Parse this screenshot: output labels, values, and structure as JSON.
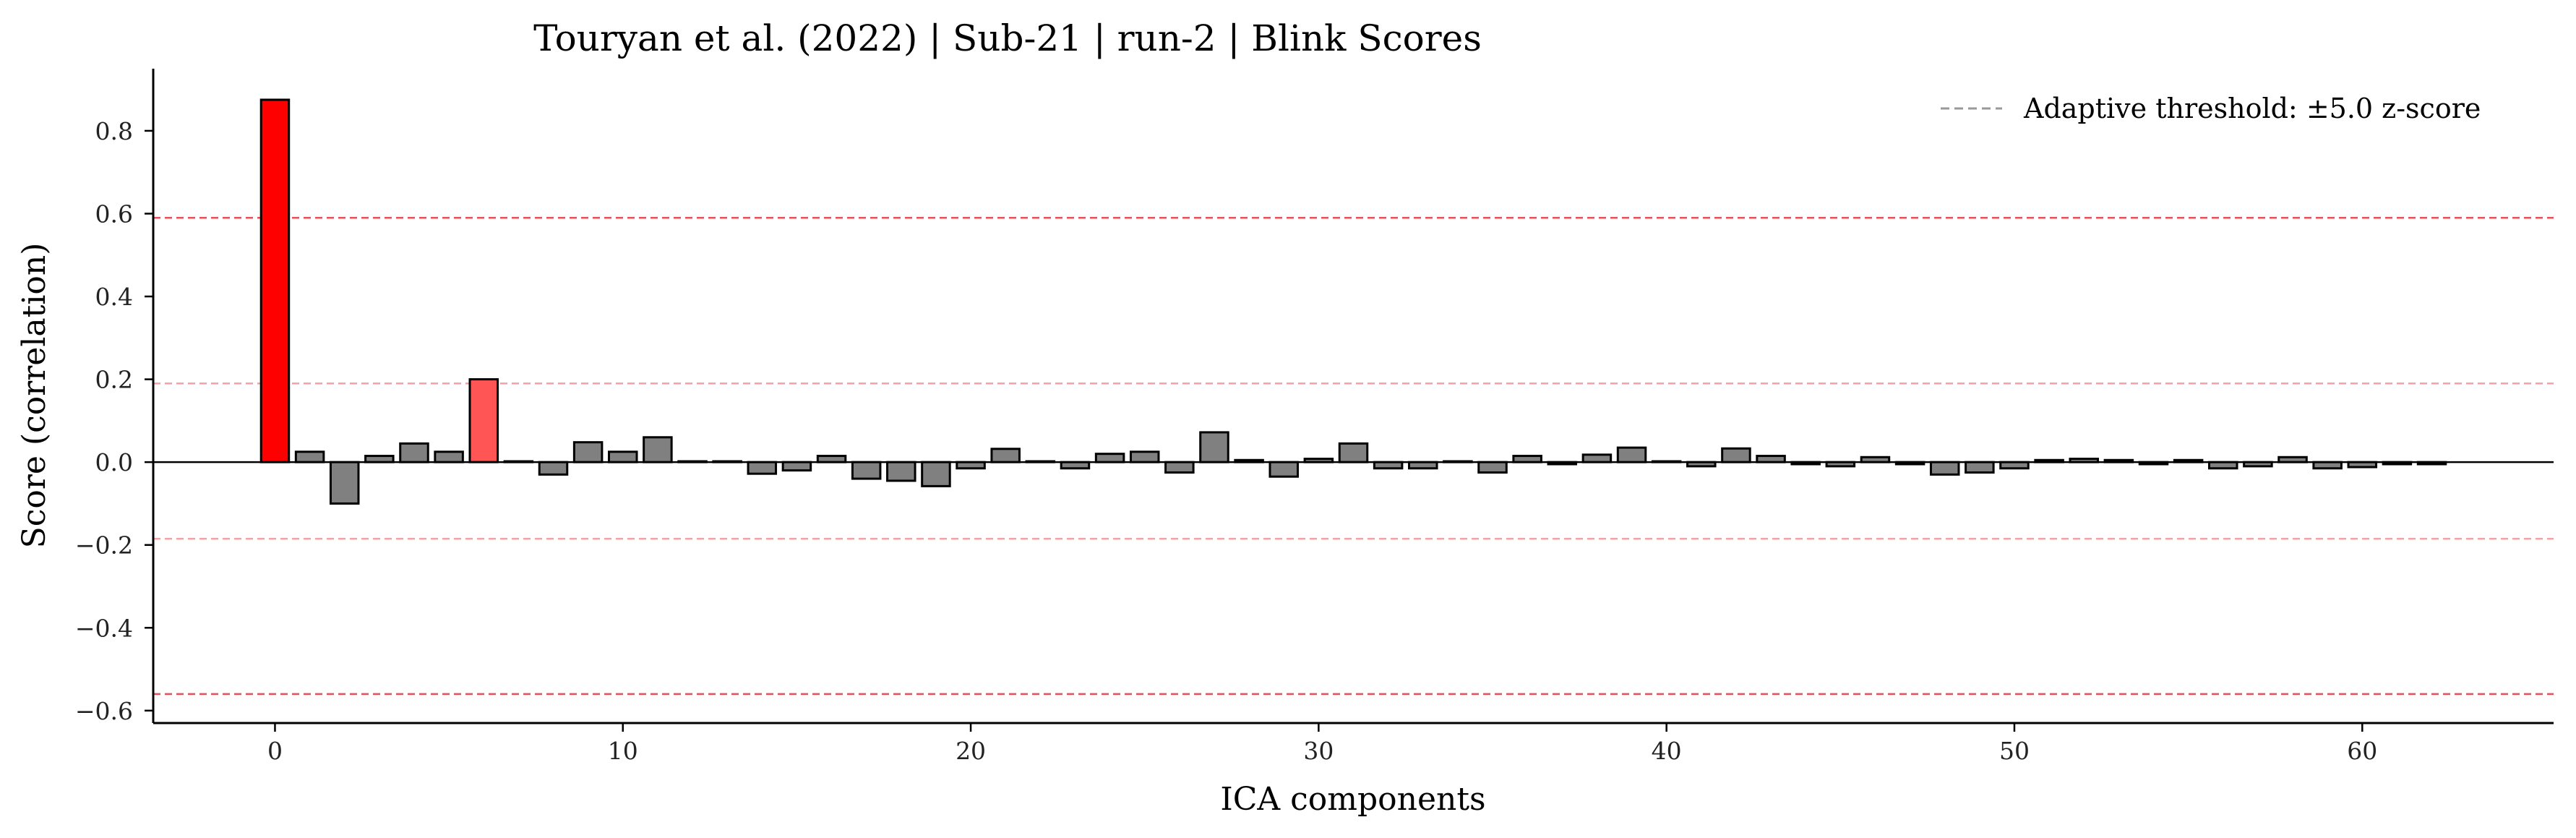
{
  "chart_data": {
    "type": "bar",
    "title": "Touryan et al. (2022) | Sub-21 | run-2 | Blink Scores",
    "xlabel": "ICA components",
    "ylabel": "Score (correlation)",
    "xlim": [
      -3.5,
      65.5
    ],
    "ylim": [
      -0.63,
      0.95
    ],
    "xticks": [
      0,
      10,
      20,
      30,
      40,
      50,
      60
    ],
    "yticks": [
      -0.6,
      -0.4,
      -0.2,
      0.0,
      0.2,
      0.4,
      0.6,
      0.8
    ],
    "ytick_labels": [
      "−0.6",
      "−0.4",
      "−0.2",
      "0.0",
      "0.2",
      "0.4",
      "0.6",
      "0.8"
    ],
    "x": [
      0,
      1,
      2,
      3,
      4,
      5,
      6,
      7,
      8,
      9,
      10,
      11,
      12,
      13,
      14,
      15,
      16,
      17,
      18,
      19,
      20,
      21,
      22,
      23,
      24,
      25,
      26,
      27,
      28,
      29,
      30,
      31,
      32,
      33,
      34,
      35,
      36,
      37,
      38,
      39,
      40,
      41,
      42,
      43,
      44,
      45,
      46,
      47,
      48,
      49,
      50,
      51,
      52,
      53,
      54,
      55,
      56,
      57,
      58,
      59,
      60,
      61,
      62
    ],
    "values": [
      0.875,
      0.025,
      -0.1,
      0.015,
      0.045,
      0.025,
      0.2,
      0.002,
      -0.03,
      0.048,
      0.025,
      0.06,
      0.002,
      0.002,
      -0.028,
      -0.02,
      0.015,
      -0.04,
      -0.045,
      -0.058,
      -0.015,
      0.032,
      0.002,
      -0.015,
      0.02,
      0.025,
      -0.025,
      0.072,
      0.005,
      -0.035,
      0.008,
      0.045,
      -0.015,
      -0.015,
      0.002,
      -0.025,
      0.015,
      -0.005,
      0.018,
      0.035,
      0.002,
      -0.01,
      0.033,
      0.015,
      -0.005,
      -0.01,
      0.012,
      -0.005,
      -0.03,
      -0.025,
      -0.015,
      0.005,
      0.008,
      0.005,
      -0.005,
      0.005,
      -0.015,
      -0.01,
      0.012,
      -0.015,
      -0.012,
      -0.005,
      -0.005
    ],
    "bar_colors": [
      "#ff0000",
      "#808080",
      "#808080",
      "#808080",
      "#808080",
      "#808080",
      "#ff5555",
      "#808080",
      "#808080",
      "#808080",
      "#808080",
      "#808080",
      "#808080",
      "#808080",
      "#808080",
      "#808080",
      "#808080",
      "#808080",
      "#808080",
      "#808080",
      "#808080",
      "#808080",
      "#808080",
      "#808080",
      "#808080",
      "#808080",
      "#808080",
      "#808080",
      "#808080",
      "#808080",
      "#808080",
      "#808080",
      "#808080",
      "#808080",
      "#808080",
      "#808080",
      "#808080",
      "#808080",
      "#808080",
      "#808080",
      "#808080",
      "#808080",
      "#808080",
      "#808080",
      "#808080",
      "#808080",
      "#808080",
      "#808080",
      "#808080",
      "#808080",
      "#808080",
      "#808080",
      "#808080",
      "#808080",
      "#808080",
      "#808080",
      "#808080",
      "#808080",
      "#808080",
      "#808080",
      "#808080",
      "#808080",
      "#808080"
    ],
    "threshold_lines": [
      {
        "y": 0.59,
        "color": "#e8505a"
      },
      {
        "y": 0.19,
        "color": "#f4a0a4"
      },
      {
        "y": -0.185,
        "color": "#f4a0a4"
      },
      {
        "y": -0.56,
        "color": "#e8505a"
      }
    ],
    "legend": {
      "position": "top-right",
      "entries": [
        {
          "label": "Adaptive threshold: ±5.0 z-score",
          "color": "#999999",
          "style": "dashed"
        }
      ]
    },
    "grid": false
  }
}
